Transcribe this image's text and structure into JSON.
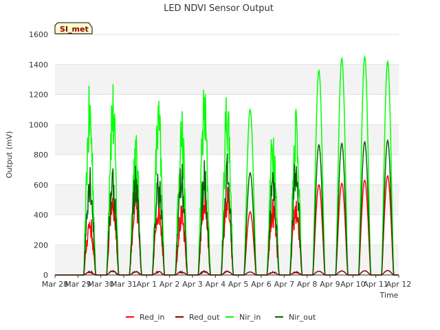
{
  "chart_data": {
    "type": "line",
    "title": "LED NDVI Sensor Output",
    "xlabel": "Time",
    "ylabel": "Output (mV)",
    "badge": "SI_met",
    "ylim": [
      0,
      1600
    ],
    "yticks": [
      0,
      200,
      400,
      600,
      800,
      1000,
      1200,
      1400,
      1600
    ],
    "xlim": [
      "2024-03-28",
      "2024-04-12"
    ],
    "xticks": [
      "Mar 28",
      "Mar 29",
      "Mar 30",
      "Mar 31",
      "Apr 1",
      "Apr 2",
      "Apr 3",
      "Apr 4",
      "Apr 5",
      "Apr 6",
      "Apr 7",
      "Apr 8",
      "Apr 9",
      "Apr 10",
      "Apr 11",
      "Apr 12"
    ],
    "grid": true,
    "legend_position": "bottom",
    "day_labels": [
      "Mar 28",
      "Mar 29",
      "Mar 30",
      "Mar 31",
      "Apr 1",
      "Apr 2",
      "Apr 3",
      "Apr 4",
      "Apr 5",
      "Apr 6",
      "Apr 7",
      "Apr 8",
      "Apr 9",
      "Apr 10",
      "Apr 11"
    ],
    "series": [
      {
        "name": "Red_in",
        "color": "#ff0000",
        "daily_peaks": [
          0,
          420,
          620,
          580,
          560,
          470,
          600,
          610,
          420,
          520,
          540,
          600,
          610,
          630,
          660
        ]
      },
      {
        "name": "Red_out",
        "color": "#8b0000",
        "daily_peaks": [
          0,
          25,
          30,
          25,
          25,
          25,
          28,
          28,
          20,
          22,
          22,
          25,
          27,
          28,
          30
        ]
      },
      {
        "name": "Nir_in",
        "color": "#00ff00",
        "daily_peaks": [
          0,
          1290,
          1335,
          985,
          1220,
          1175,
          1320,
          1330,
          1100,
          1075,
          1210,
          1360,
          1440,
          1450,
          1420
        ]
      },
      {
        "name": "Nir_out",
        "color": "#006400",
        "daily_peaks": [
          0,
          790,
          775,
          750,
          745,
          770,
          765,
          815,
          680,
          735,
          820,
          865,
          875,
          885,
          895
        ]
      }
    ]
  }
}
